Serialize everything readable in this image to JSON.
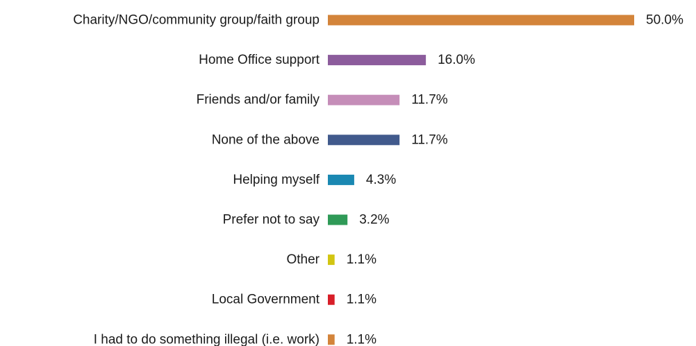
{
  "chart_data": {
    "type": "bar",
    "orientation": "horizontal",
    "categories": [
      "Charity/NGO/community group/faith group",
      "Home Office support",
      "Friends and/or family",
      "None of the above",
      "Helping myself",
      "Prefer not to say",
      "Other",
      "Local Government",
      "I had to do something illegal (i.e. work)"
    ],
    "values": [
      50.0,
      16.0,
      11.7,
      11.7,
      4.3,
      3.2,
      1.1,
      1.1,
      1.1
    ],
    "value_labels": [
      "50.0%",
      "16.0%",
      "11.7%",
      "11.7%",
      "4.3%",
      "3.2%",
      "1.1%",
      "1.1%",
      "1.1%"
    ],
    "colors": [
      "#d3843a",
      "#8c5c9c",
      "#c58db8",
      "#415a8c",
      "#1a88b2",
      "#2f9a57",
      "#d2c512",
      "#d81e28",
      "#d3843a"
    ],
    "xlim": [
      0,
      50
    ],
    "grid": false,
    "legend": "none",
    "title": "",
    "xlabel": "",
    "ylabel": ""
  }
}
